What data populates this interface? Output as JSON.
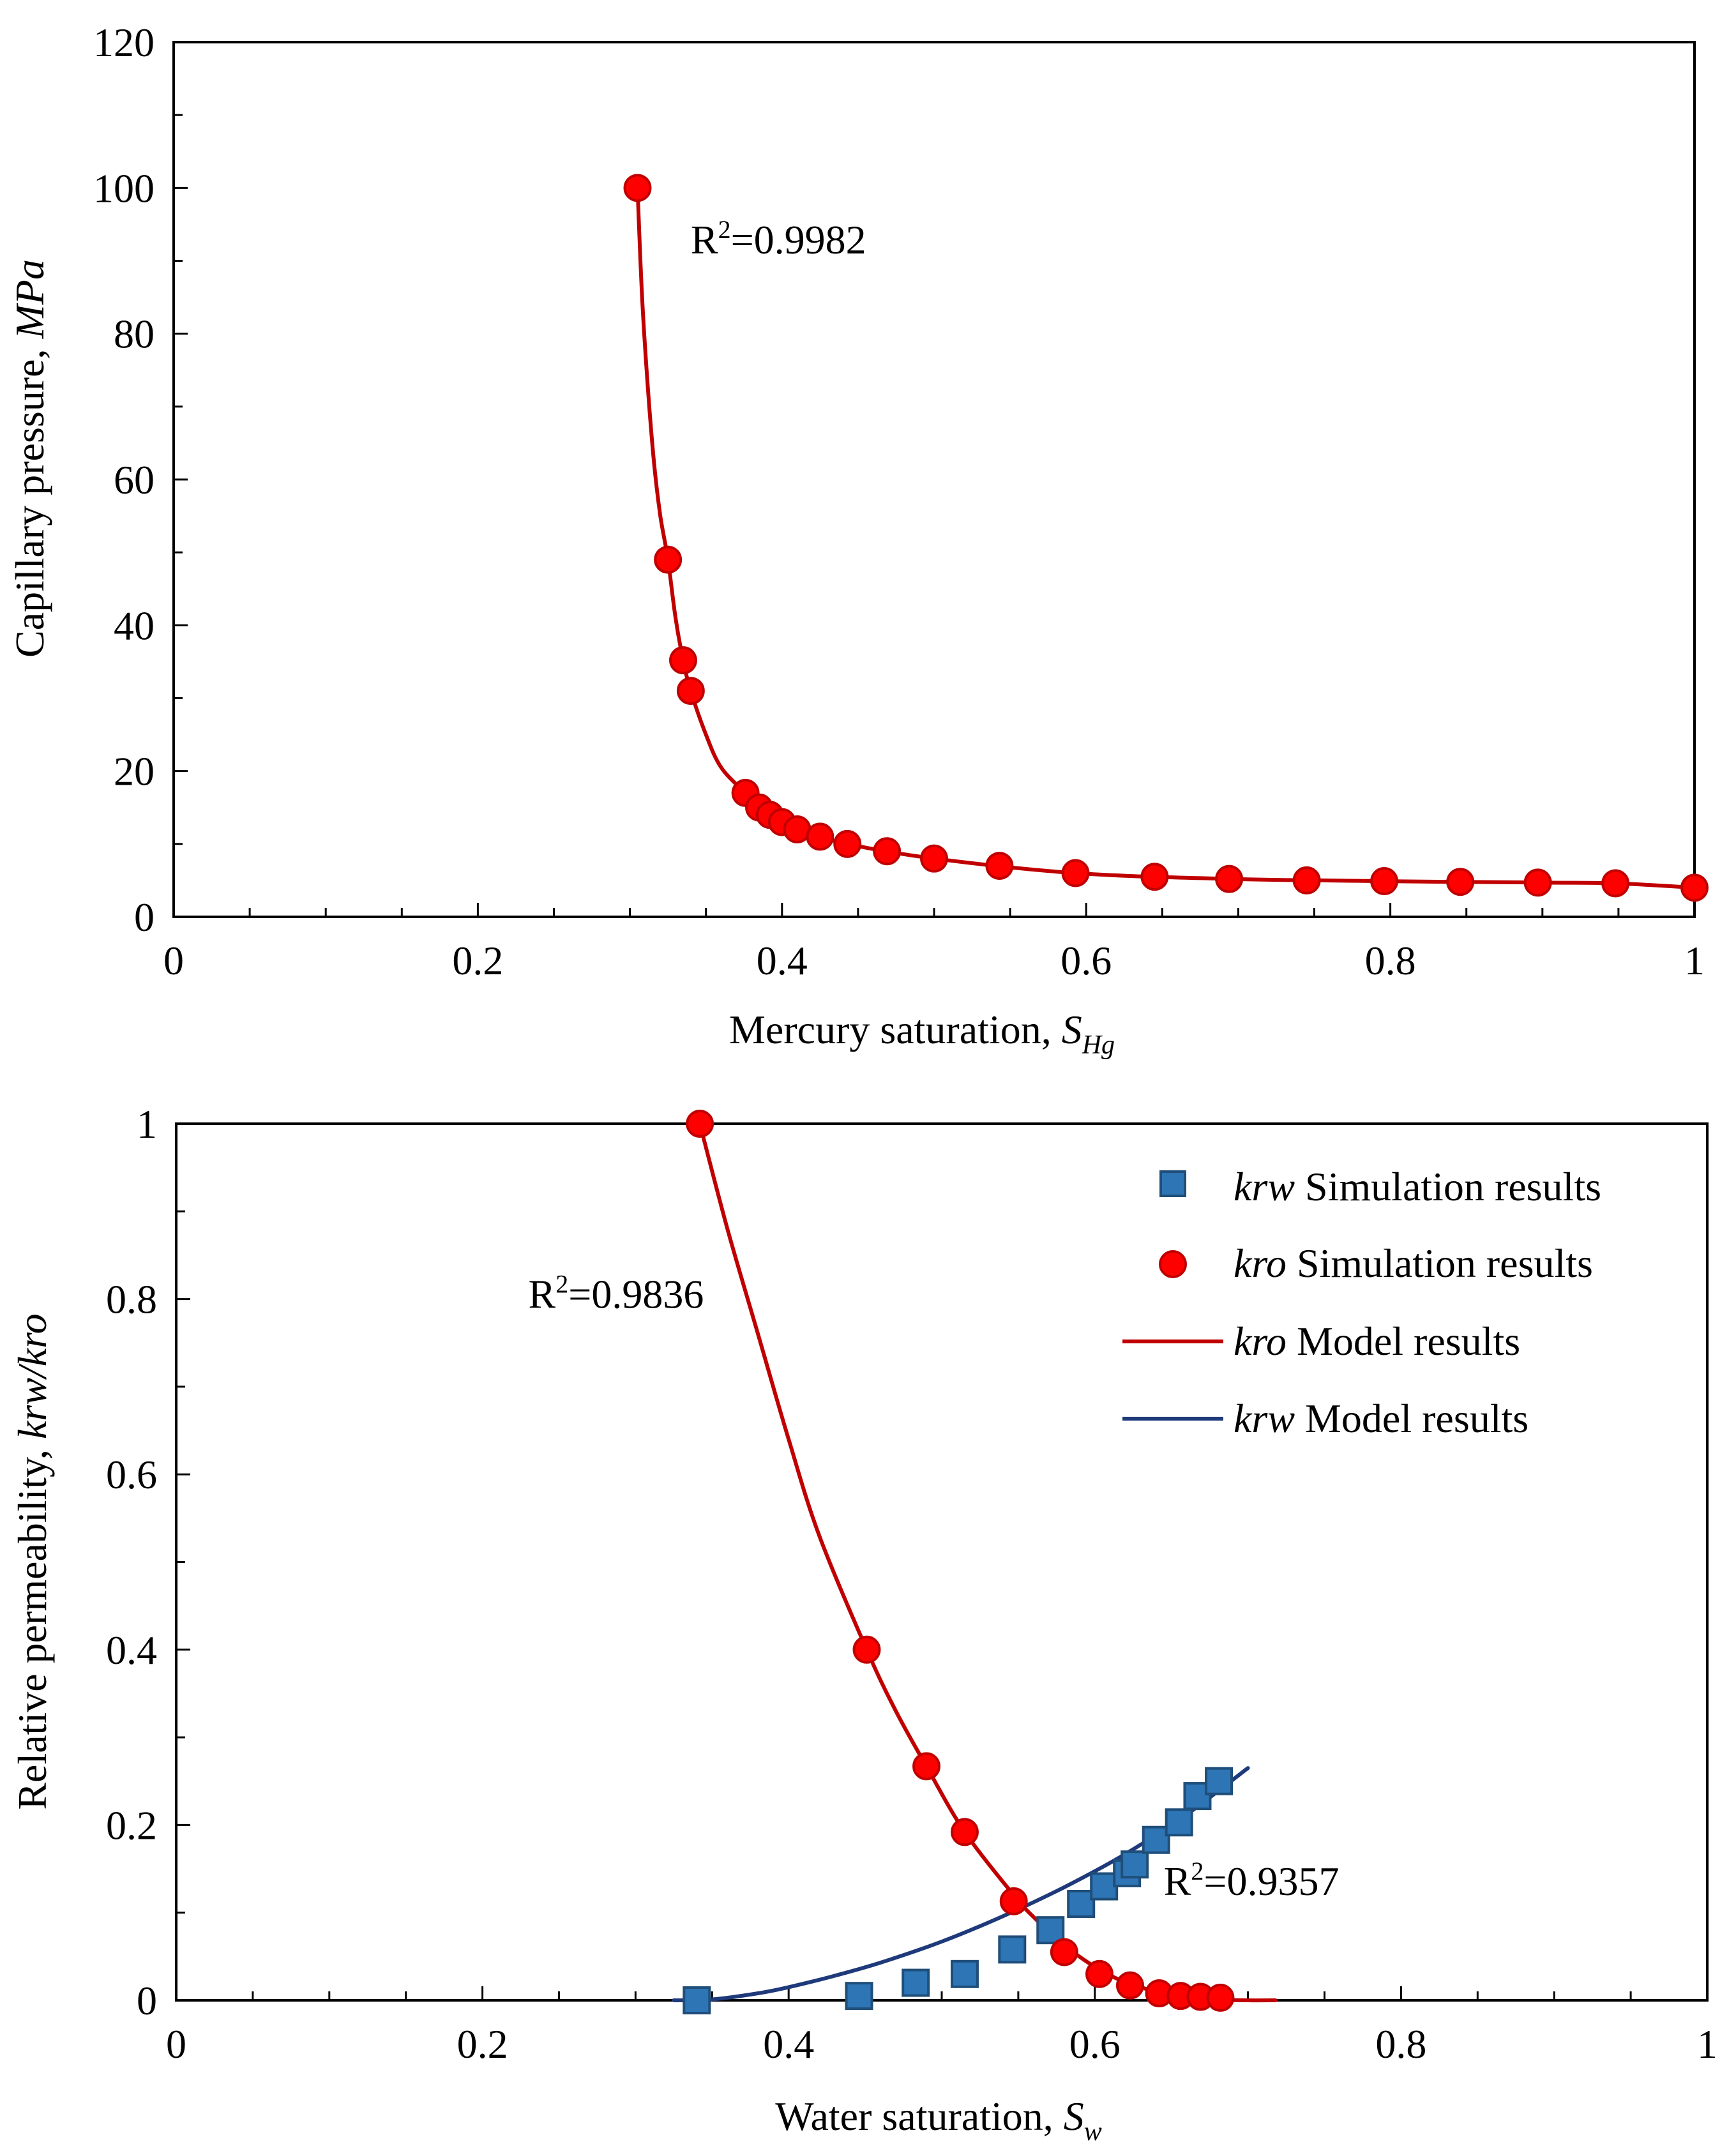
{
  "colors": {
    "red": "#ff0000",
    "red_stroke": "#c00000",
    "red_line": "#c00000",
    "blue_fill": "#2e75b6",
    "blue_stroke": "#1f4e79",
    "navy_line": "#1f3a7a",
    "axis": "#000000",
    "background": "#ffffff"
  },
  "chart_data": [
    {
      "type": "scatter",
      "xlabel": "Mercury saturation, ",
      "xlabel_var": "S",
      "xlabel_sub": "Hg",
      "ylabel": "Capillary pressure, ",
      "ylabel_unit": "MPa",
      "xlim": [
        0,
        1
      ],
      "ylim": [
        0,
        120
      ],
      "xticks": [
        "0",
        "0.2",
        "0.4",
        "0.6",
        "0.8",
        "1"
      ],
      "xtick_values": [
        0,
        0.2,
        0.4,
        0.6,
        0.8,
        1
      ],
      "yticks": [
        "0",
        "20",
        "40",
        "60",
        "80",
        "100",
        "120"
      ],
      "ytick_values": [
        0,
        20,
        40,
        60,
        80,
        100,
        120
      ],
      "grid": false,
      "annotation": {
        "text_prefix": "R",
        "sup": "2",
        "text_suffix": "=0.9982",
        "x": 0.34,
        "y": 91
      },
      "series": [
        {
          "kind": "points",
          "marker": "circle",
          "x": [
            0.305,
            0.325,
            0.335,
            0.34,
            0.376,
            0.385,
            0.392,
            0.4,
            0.41,
            0.425,
            0.443,
            0.469,
            0.5,
            0.543,
            0.593,
            0.645,
            0.694,
            0.745,
            0.796,
            0.846,
            0.897,
            0.948,
            1.0
          ],
          "y": [
            100,
            49,
            35.2,
            31,
            17,
            15,
            14,
            13,
            12,
            11,
            10,
            9,
            8,
            7,
            6,
            5.5,
            5.2,
            5,
            4.9,
            4.8,
            4.7,
            4.6,
            4
          ]
        },
        {
          "kind": "line",
          "x": [
            0.305,
            0.308,
            0.312,
            0.316,
            0.32,
            0.325,
            0.33,
            0.335,
            0.34,
            0.35,
            0.36,
            0.376,
            0.392,
            0.41,
            0.443,
            0.5,
            0.593,
            0.694,
            0.796,
            0.897,
            0.948,
            1.0
          ],
          "y": [
            100,
            85,
            72,
            62,
            55,
            49,
            41,
            35.2,
            31,
            25,
            20.5,
            17,
            14,
            12,
            10,
            8,
            6,
            5.2,
            4.9,
            4.7,
            4.6,
            4
          ]
        }
      ]
    },
    {
      "type": "scatter",
      "xlabel": "Water saturation, ",
      "xlabel_var": "S",
      "xlabel_sub": "w",
      "ylabel": "Relative permeability, ",
      "ylabel_unit": "krw/kro",
      "xlim": [
        0,
        1
      ],
      "ylim": [
        0,
        1
      ],
      "xticks": [
        "0",
        "0.2",
        "0.4",
        "0.6",
        "0.8",
        "1"
      ],
      "xtick_values": [
        0,
        0.2,
        0.4,
        0.6,
        0.8,
        1
      ],
      "yticks": [
        "0",
        "0.2",
        "0.4",
        "0.6",
        "0.8",
        "1"
      ],
      "ytick_values": [
        0,
        0.2,
        0.4,
        0.6,
        0.8,
        1
      ],
      "grid": false,
      "legend_position": "top-right",
      "annotations": [
        {
          "text_prefix": "R",
          "sup": "2",
          "text_suffix": "=0.9836",
          "x": 0.23,
          "y": 0.79
        },
        {
          "text_prefix": "R",
          "sup": "2",
          "text_suffix": "=0.9357",
          "x": 0.645,
          "y": 0.12
        }
      ],
      "series": [
        {
          "name_var": "krw",
          "name_text": " Simulation results",
          "kind": "points",
          "marker": "square",
          "color": "blue",
          "x": [
            0.34,
            0.446,
            0.483,
            0.515,
            0.546,
            0.571,
            0.591,
            0.606,
            0.621,
            0.626,
            0.64,
            0.655,
            0.667,
            0.681
          ],
          "y": [
            0.0,
            0.005,
            0.02,
            0.03,
            0.058,
            0.08,
            0.11,
            0.13,
            0.145,
            0.155,
            0.183,
            0.203,
            0.233,
            0.25
          ]
        },
        {
          "name_var": "kro",
          "name_text": " Simulation results",
          "kind": "points",
          "marker": "circle",
          "color": "red",
          "x": [
            0.342,
            0.451,
            0.49,
            0.515,
            0.547,
            0.58,
            0.603,
            0.623,
            0.642,
            0.656,
            0.669,
            0.682
          ],
          "y": [
            1.0,
            0.4,
            0.267,
            0.192,
            0.113,
            0.055,
            0.03,
            0.017,
            0.008,
            0.005,
            0.004,
            0.003
          ]
        },
        {
          "name_var": "kro",
          "name_text": " Model results",
          "kind": "line",
          "color": "red",
          "x": [
            0.342,
            0.36,
            0.38,
            0.4,
            0.42,
            0.451,
            0.47,
            0.49,
            0.515,
            0.547,
            0.56,
            0.58,
            0.603,
            0.623,
            0.65,
            0.68,
            0.7,
            0.718
          ],
          "y": [
            1.0,
            0.88,
            0.76,
            0.64,
            0.53,
            0.4,
            0.33,
            0.267,
            0.192,
            0.12,
            0.095,
            0.063,
            0.035,
            0.019,
            0.006,
            0.001,
            0.0,
            0.0
          ]
        },
        {
          "name_var": "krw",
          "name_text": " Model results",
          "kind": "line",
          "color": "navy",
          "x": [
            0.325,
            0.35,
            0.38,
            0.4,
            0.43,
            0.46,
            0.5,
            0.54,
            0.58,
            0.62,
            0.66,
            0.7
          ],
          "y": [
            0.0,
            0.001,
            0.008,
            0.015,
            0.028,
            0.043,
            0.067,
            0.096,
            0.129,
            0.167,
            0.212,
            0.265
          ]
        }
      ]
    }
  ]
}
